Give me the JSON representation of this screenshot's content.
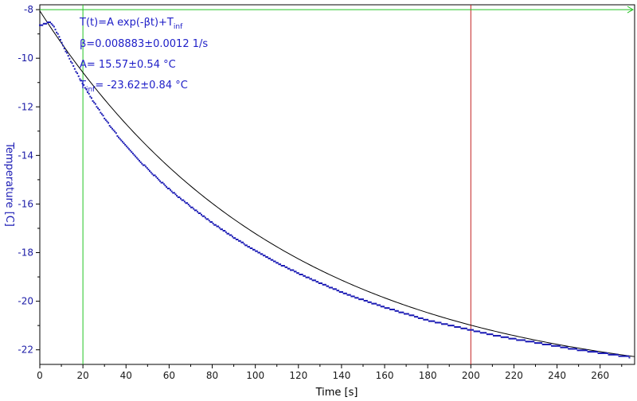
{
  "chart_data": {
    "type": "scatter",
    "xlabel": "Time [s]",
    "ylabel": "Temperature [C]",
    "xlim": [
      0,
      276
    ],
    "ylim": [
      -22.6,
      -7.8
    ],
    "xticks": [
      0,
      20,
      40,
      60,
      80,
      100,
      120,
      140,
      160,
      180,
      200,
      220,
      240,
      260
    ],
    "yticks": [
      -8,
      -10,
      -12,
      -14,
      -16,
      -18,
      -20,
      -22
    ],
    "grid": false,
    "series": [
      {
        "kind": "measured",
        "color": "#1a1ab4",
        "x": [
          0,
          1,
          2,
          3,
          4,
          5,
          6,
          8,
          10,
          12,
          14,
          16,
          18,
          20,
          22,
          25,
          28,
          31,
          34,
          37,
          40,
          43,
          46,
          50,
          55,
          60,
          65,
          70,
          75,
          80,
          85,
          90,
          95,
          100,
          110,
          120,
          130,
          140,
          150,
          160,
          170,
          180,
          190,
          200,
          210,
          220,
          230,
          240,
          250,
          260,
          270,
          274
        ],
        "y": [
          -8.62,
          -8.62,
          -8.58,
          -8.55,
          -8.52,
          -8.55,
          -8.62,
          -8.95,
          -9.32,
          -9.7,
          -10.05,
          -10.4,
          -10.75,
          -11.05,
          -11.35,
          -11.8,
          -12.2,
          -12.58,
          -12.95,
          -13.28,
          -13.6,
          -13.9,
          -14.2,
          -14.55,
          -14.98,
          -15.38,
          -15.75,
          -16.1,
          -16.45,
          -16.78,
          -17.08,
          -17.38,
          -17.65,
          -17.92,
          -18.42,
          -18.85,
          -19.25,
          -19.62,
          -19.95,
          -20.25,
          -20.52,
          -20.78,
          -20.98,
          -21.18,
          -21.38,
          -21.55,
          -21.7,
          -21.85,
          -22.0,
          -22.12,
          -22.25,
          -22.3
        ]
      },
      {
        "kind": "fit",
        "color": "#000000",
        "model": "exponential",
        "A": 15.57,
        "beta": 0.008883,
        "T_inf": -23.62,
        "x_range": [
          0,
          276
        ]
      }
    ],
    "vertical_markers": [
      {
        "x": 20,
        "color": "#22c322"
      },
      {
        "x": 200,
        "color": "#c32020"
      }
    ],
    "horizontal_markers": [
      {
        "y": -8,
        "color": "#22c322",
        "arrow": true
      }
    ]
  },
  "annotation": {
    "formula_main": "T(t)=A exp(-βt)+T",
    "formula_sub": "inf",
    "beta_line": "β=0.008883±0.0012 1/s",
    "a_line": "A= 15.57±0.54 °C",
    "tinf_prefix": "T",
    "tinf_sub": "inf",
    "tinf_rest": "= -23.62±0.84 °C"
  }
}
